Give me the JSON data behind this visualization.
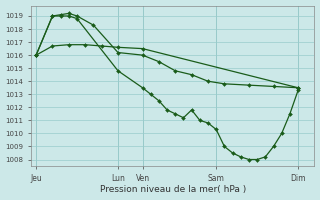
{
  "xlabel": "Pression niveau de la mer( hPa )",
  "ylim": [
    1007.5,
    1019.8
  ],
  "yticks": [
    1008,
    1009,
    1010,
    1011,
    1012,
    1013,
    1014,
    1015,
    1016,
    1017,
    1018,
    1019
  ],
  "bg_color": "#cce8e8",
  "grid_color": "#99cccc",
  "line_color": "#1a5c1a",
  "xtick_labels": [
    "Jeu",
    "Lun",
    "Ven",
    "Sam",
    "Dim"
  ],
  "xtick_pos": [
    0,
    5,
    6.5,
    11,
    16
  ],
  "xlim": [
    -0.3,
    17.0
  ],
  "line1_x": [
    0,
    1,
    2,
    3,
    4,
    5,
    6.5,
    16
  ],
  "line1_y": [
    1016.0,
    1016.7,
    1016.8,
    1016.8,
    1016.7,
    1016.6,
    1016.5,
    1013.5
  ],
  "line2_x": [
    0,
    1,
    1.5,
    2,
    2.5,
    3.5,
    5,
    6.5,
    7.5,
    8.5,
    9.5,
    10.5,
    11.5,
    13,
    14.5,
    16
  ],
  "line2_y": [
    1016.0,
    1019.0,
    1019.1,
    1019.2,
    1019.0,
    1018.3,
    1016.2,
    1016.0,
    1015.5,
    1014.8,
    1014.5,
    1014.0,
    1013.8,
    1013.7,
    1013.6,
    1013.5
  ],
  "line3_x": [
    0,
    1,
    1.5,
    2,
    2.5,
    5,
    6.5,
    7,
    7.5,
    8,
    8.5,
    9,
    9.5,
    10,
    10.5,
    11,
    11.5,
    12,
    12.5,
    13,
    13.5,
    14,
    14.5,
    15,
    15.5,
    16
  ],
  "line3_y": [
    1016.0,
    1019.0,
    1019.0,
    1019.0,
    1018.8,
    1014.8,
    1013.5,
    1013.0,
    1012.5,
    1011.8,
    1011.5,
    1011.2,
    1011.8,
    1011.0,
    1010.8,
    1010.3,
    1009.0,
    1008.5,
    1008.2,
    1008.0,
    1008.0,
    1008.2,
    1009.0,
    1010.0,
    1011.5,
    1013.3
  ]
}
